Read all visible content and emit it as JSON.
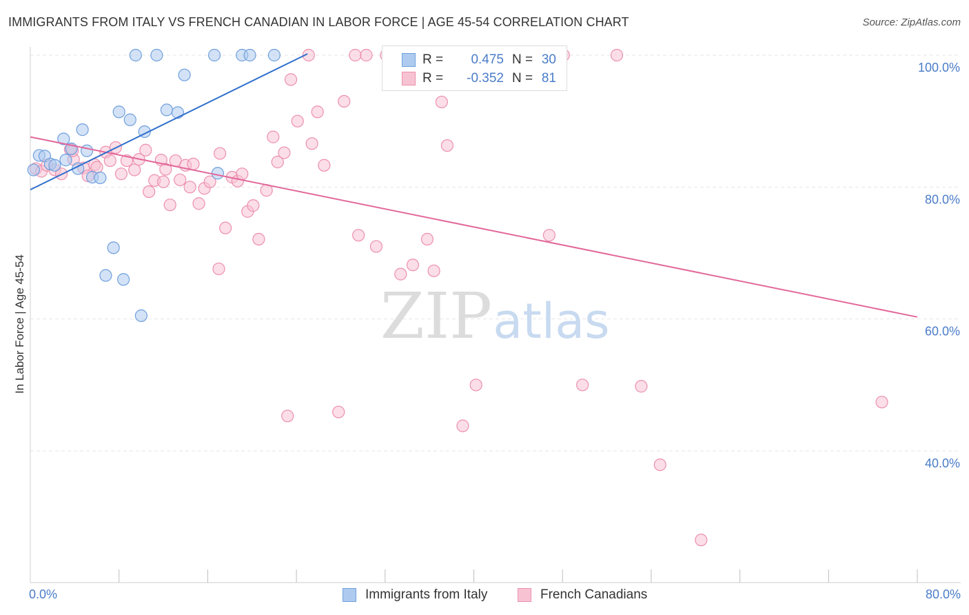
{
  "title": "IMMIGRANTS FROM ITALY VS FRENCH CANADIAN IN LABOR FORCE | AGE 45-54 CORRELATION CHART",
  "source": "Source: ZipAtlas.com",
  "watermark": {
    "zip": "ZIP",
    "atlas": "atlas"
  },
  "colors": {
    "italy_fill": "#aecbef",
    "italy_stroke": "#6f9fdd",
    "italy_line": "#2f6fcc",
    "french_fill": "#f7c3d3",
    "french_stroke": "#ec8fae",
    "french_line": "#e2679a",
    "tick_text": "#4a7cc9"
  },
  "legend_top": {
    "rows": [
      {
        "r_label": "R =",
        "r_value": "0.475",
        "n_label": "N =",
        "n_value": "30"
      },
      {
        "r_label": "R =",
        "r_value": "-0.352",
        "n_label": "N =",
        "n_value": "81"
      }
    ]
  },
  "legend_bottom": {
    "items": [
      "Immigrants from Italy",
      "French Canadians"
    ]
  },
  "chart_data": {
    "type": "scatter",
    "title": "IMMIGRANTS FROM ITALY VS FRENCH CANADIAN IN LABOR FORCE | AGE 45-54 CORRELATION CHART",
    "xlabel": "",
    "ylabel": "In Labor Force | Age 45-54",
    "xlim": [
      0,
      80
    ],
    "ylim": [
      18,
      101
    ],
    "x_tick_labels": [
      "0.0%",
      "80.0%"
    ],
    "y_ticks": [
      40,
      60,
      80,
      100
    ],
    "y_tick_labels": [
      "40.0%",
      "60.0%",
      "80.0%",
      "100.0%"
    ],
    "grid": true,
    "legend_position": "top-center",
    "series": [
      {
        "name": "Immigrants from Italy",
        "R": 0.475,
        "N": 30,
        "points": [
          [
            0.3,
            82.6
          ],
          [
            0.8,
            84.8
          ],
          [
            1.3,
            84.7
          ],
          [
            1.8,
            83.5
          ],
          [
            2.2,
            83.3
          ],
          [
            3.0,
            87.3
          ],
          [
            3.2,
            84.1
          ],
          [
            3.7,
            85.8
          ],
          [
            4.3,
            82.8
          ],
          [
            4.7,
            88.7
          ],
          [
            5.1,
            85.5
          ],
          [
            5.6,
            81.5
          ],
          [
            6.3,
            81.4
          ],
          [
            6.8,
            66.6
          ],
          [
            7.5,
            70.8
          ],
          [
            8.0,
            91.4
          ],
          [
            8.4,
            66.0
          ],
          [
            9.0,
            90.2
          ],
          [
            9.5,
            100.0
          ],
          [
            10.0,
            60.5
          ],
          [
            10.3,
            88.4
          ],
          [
            11.4,
            100.0
          ],
          [
            12.3,
            91.7
          ],
          [
            13.3,
            91.3
          ],
          [
            13.9,
            97.0
          ],
          [
            16.6,
            100.0
          ],
          [
            16.9,
            82.1
          ],
          [
            19.1,
            100.0
          ],
          [
            19.8,
            100.0
          ],
          [
            22.0,
            100.0
          ]
        ],
        "trend": {
          "x": [
            0,
            25
          ],
          "y": [
            79.6,
            100.2
          ]
        }
      },
      {
        "name": "French Canadians",
        "R": -0.352,
        "N": 81,
        "points": [
          [
            0.5,
            82.8
          ],
          [
            1.0,
            82.4
          ],
          [
            1.5,
            83.3
          ],
          [
            2.2,
            82.6
          ],
          [
            2.8,
            82.0
          ],
          [
            3.6,
            85.7
          ],
          [
            3.9,
            84.2
          ],
          [
            4.8,
            82.9
          ],
          [
            5.2,
            81.7
          ],
          [
            5.8,
            83.4
          ],
          [
            6.0,
            83.0
          ],
          [
            6.8,
            85.3
          ],
          [
            7.2,
            84.0
          ],
          [
            7.7,
            86.0
          ],
          [
            8.2,
            82.0
          ],
          [
            8.7,
            84.0
          ],
          [
            9.4,
            82.6
          ],
          [
            9.8,
            84.2
          ],
          [
            10.4,
            85.6
          ],
          [
            10.7,
            79.3
          ],
          [
            11.2,
            81.0
          ],
          [
            11.8,
            84.1
          ],
          [
            12.2,
            82.7
          ],
          [
            12.6,
            77.3
          ],
          [
            13.1,
            84.0
          ],
          [
            13.5,
            81.1
          ],
          [
            14.0,
            83.3
          ],
          [
            14.4,
            80.0
          ],
          [
            15.2,
            77.5
          ],
          [
            15.7,
            79.8
          ],
          [
            16.2,
            80.8
          ],
          [
            17.1,
            85.1
          ],
          [
            17.6,
            73.8
          ],
          [
            18.2,
            81.5
          ],
          [
            18.7,
            80.9
          ],
          [
            19.1,
            82.0
          ],
          [
            19.6,
            76.3
          ],
          [
            20.1,
            77.2
          ],
          [
            20.6,
            72.1
          ],
          [
            21.3,
            79.5
          ],
          [
            21.9,
            87.6
          ],
          [
            22.3,
            83.8
          ],
          [
            22.9,
            85.2
          ],
          [
            23.5,
            96.3
          ],
          [
            24.1,
            90.0
          ],
          [
            25.1,
            100.0
          ],
          [
            25.4,
            86.6
          ],
          [
            25.9,
            91.4
          ],
          [
            26.5,
            83.3
          ],
          [
            28.3,
            93.0
          ],
          [
            29.3,
            100.0
          ],
          [
            29.6,
            72.7
          ],
          [
            30.3,
            100.0
          ],
          [
            31.2,
            71.0
          ],
          [
            32.1,
            100.0
          ],
          [
            32.9,
            100.0
          ],
          [
            33.4,
            66.8
          ],
          [
            34.5,
            68.2
          ],
          [
            35.2,
            100.0
          ],
          [
            35.8,
            72.1
          ],
          [
            36.4,
            67.3
          ],
          [
            37.1,
            92.9
          ],
          [
            37.6,
            86.3
          ],
          [
            40.1,
            100.0
          ],
          [
            44.3,
            100.0
          ],
          [
            46.8,
            72.7
          ],
          [
            48.1,
            100.0
          ],
          [
            52.9,
            100.0
          ],
          [
            17.0,
            67.6
          ],
          [
            23.2,
            45.3
          ],
          [
            27.8,
            45.9
          ],
          [
            39.0,
            43.8
          ],
          [
            40.2,
            50.0
          ],
          [
            49.8,
            50.0
          ],
          [
            55.1,
            49.8
          ],
          [
            56.8,
            37.9
          ],
          [
            60.5,
            26.5
          ],
          [
            76.8,
            47.4
          ],
          [
            3.8,
            85.5
          ],
          [
            12.0,
            80.8
          ],
          [
            14.7,
            83.5
          ]
        ],
        "trend": {
          "x": [
            0,
            80
          ],
          "y": [
            87.6,
            60.3
          ]
        }
      }
    ]
  }
}
